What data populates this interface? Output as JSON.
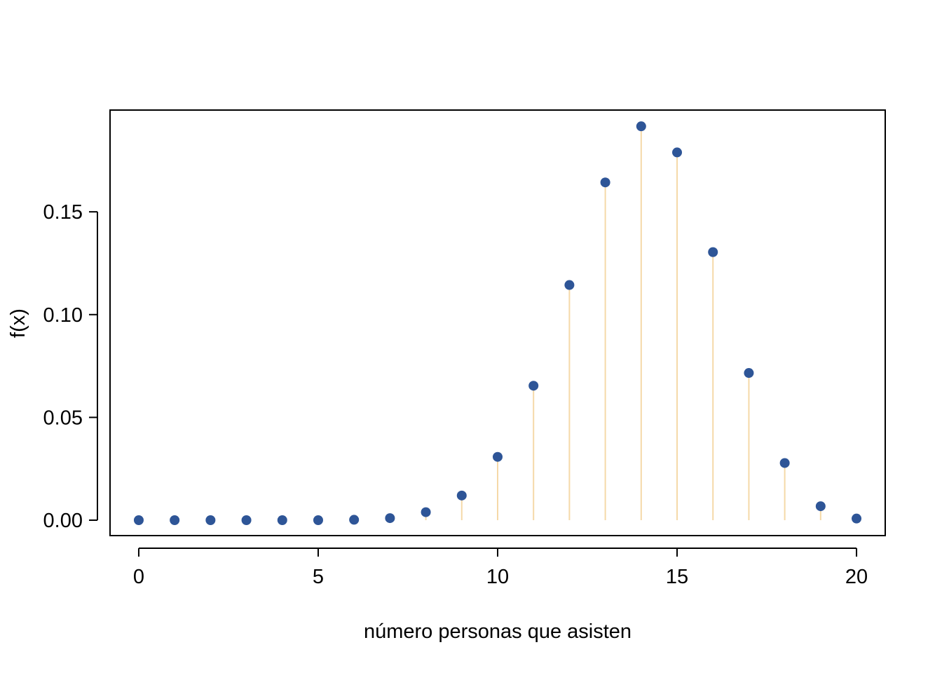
{
  "chart_data": {
    "type": "scatter",
    "style": "stem",
    "title": "",
    "xlabel": "número personas que asisten",
    "ylabel": "f(x)",
    "xlim": [
      -0.8,
      20.8
    ],
    "ylim": [
      -0.0075,
      0.1995
    ],
    "x_ticks": [
      0,
      5,
      10,
      15,
      20
    ],
    "x_tick_labels": [
      "0",
      "5",
      "10",
      "15",
      "20"
    ],
    "y_ticks": [
      0.0,
      0.05,
      0.1,
      0.15
    ],
    "y_tick_labels": [
      "0.00",
      "0.05",
      "0.10",
      "0.15"
    ],
    "grid": false,
    "series": [
      {
        "x": [
          0,
          1,
          2,
          3,
          4,
          5,
          6,
          7,
          8,
          9,
          10,
          11,
          12,
          13,
          14,
          15,
          16,
          17,
          18,
          19,
          20
        ],
        "values": [
          0.0,
          0.0,
          0.0,
          0.0,
          0.0,
          0.0,
          0.0002,
          0.001,
          0.0039,
          0.012,
          0.0308,
          0.0654,
          0.1144,
          0.1643,
          0.1916,
          0.1789,
          0.1304,
          0.0716,
          0.0278,
          0.0068,
          0.0008
        ]
      }
    ],
    "colors": {
      "point": "#2e5597",
      "stem": "#f5d9a8",
      "axis": "#000000"
    }
  }
}
